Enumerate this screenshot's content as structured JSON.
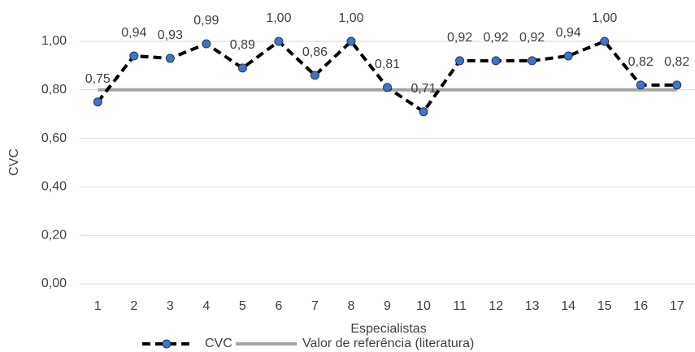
{
  "chart_data": {
    "type": "line",
    "x_label": "Especialistas",
    "y_label": "CVC",
    "categories": [
      "1",
      "2",
      "3",
      "4",
      "5",
      "6",
      "7",
      "8",
      "9",
      "10",
      "11",
      "12",
      "13",
      "14",
      "15",
      "16",
      "17"
    ],
    "series": [
      {
        "name": "CVC",
        "color": "#4472c4",
        "line_color": "#000000",
        "dashed": true,
        "values": [
          0.75,
          0.94,
          0.93,
          0.99,
          0.89,
          1.0,
          0.86,
          1.0,
          0.81,
          0.71,
          0.92,
          0.92,
          0.92,
          0.94,
          1.0,
          0.82,
          0.82
        ],
        "value_labels": [
          "0,75",
          "0,94",
          "0,93",
          "0,99",
          "0,89",
          "1,00",
          "0,86",
          "1,00",
          "0,81",
          "0,71",
          "0,92",
          "0,92",
          "0,92",
          "0,94",
          "1,00",
          "0,82",
          "0,82"
        ]
      },
      {
        "name": "Valor de referência (literatura)",
        "color": "#a5a5a5",
        "dashed": false,
        "values": [
          0.8,
          0.8,
          0.8,
          0.8,
          0.8,
          0.8,
          0.8,
          0.8,
          0.8,
          0.8,
          0.8,
          0.8,
          0.8,
          0.8,
          0.8,
          0.8,
          0.8
        ]
      }
    ],
    "ylim": [
      0,
      1
    ],
    "yticks": [
      {
        "value": 0,
        "label": "0,00"
      },
      {
        "value": 0.2,
        "label": "0,20"
      },
      {
        "value": 0.4,
        "label": "0,40"
      },
      {
        "value": 0.6,
        "label": "0,60"
      },
      {
        "value": 0.8,
        "label": "0,80"
      },
      {
        "value": 1,
        "label": "1,00"
      }
    ],
    "grid": true,
    "legend": "bottom"
  }
}
